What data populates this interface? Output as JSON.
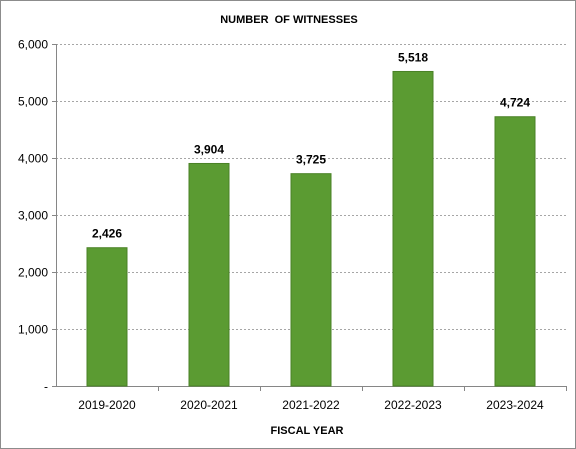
{
  "chart_data": {
    "type": "bar",
    "title": "NUMBER  OF WITNESSES",
    "xlabel": "FISCAL YEAR",
    "ylabel": "",
    "categories": [
      "2019-2020",
      "2020-2021",
      "2021-2022",
      "2022-2023",
      "2023-2024"
    ],
    "values": [
      2426,
      3904,
      3725,
      5518,
      4724
    ],
    "data_labels": [
      "2,426",
      "3,904",
      "3,725",
      "5,518",
      "4,724"
    ],
    "ylim": [
      0,
      6000
    ],
    "yticks": [
      0,
      1000,
      2000,
      3000,
      4000,
      5000,
      6000
    ],
    "ytick_labels": [
      "-",
      "1,000",
      "2,000",
      "3,000",
      "4,000",
      "5,000",
      "6,000"
    ],
    "grid": true,
    "legend": "none",
    "colors": {
      "bar_fill": "#5b9b32",
      "bar_stroke": "#4a8226",
      "gridline": "#a6a6a6",
      "axis": "#868686"
    }
  }
}
